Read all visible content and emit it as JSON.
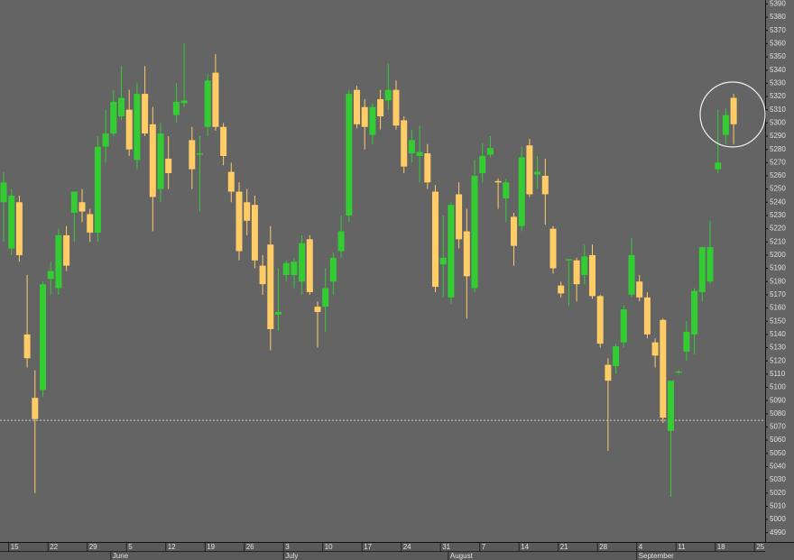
{
  "chart_data": {
    "type": "candlestick",
    "up_color": "#33cc33",
    "down_color": "#ffcc66",
    "ylim": [
      4983,
      5393
    ],
    "yticks": [
      4990,
      5000,
      5010,
      5020,
      5030,
      5040,
      5050,
      5060,
      5070,
      5080,
      5090,
      5100,
      5110,
      5120,
      5130,
      5140,
      5150,
      5160,
      5170,
      5180,
      5190,
      5200,
      5210,
      5220,
      5230,
      5240,
      5250,
      5260,
      5270,
      5280,
      5290,
      5300,
      5310,
      5320,
      5330,
      5340,
      5350,
      5360,
      5370,
      5380,
      5390
    ],
    "hline": 5075,
    "categories": [
      null,
      "15",
      null,
      null,
      null,
      null,
      "22",
      null,
      null,
      null,
      null,
      "29",
      null,
      null,
      null,
      null,
      "5",
      null,
      null,
      null,
      null,
      "12",
      null,
      null,
      null,
      null,
      "19",
      null,
      null,
      null,
      null,
      "26",
      null,
      null,
      null,
      null,
      "3",
      null,
      null,
      null,
      null,
      "10",
      null,
      null,
      null,
      null,
      "17",
      null,
      null,
      null,
      null,
      "24",
      null,
      null,
      null,
      null,
      "31",
      null,
      null,
      null,
      null,
      "7",
      null,
      null,
      null,
      null,
      "14",
      null,
      null,
      null,
      null,
      "21",
      null,
      null,
      null,
      null,
      "28",
      null,
      null,
      null,
      null,
      "4",
      null,
      null,
      null,
      null,
      "11",
      null,
      null,
      null,
      null,
      "18",
      null,
      null,
      null,
      null,
      "25"
    ],
    "month_labels": [
      null,
      null,
      null,
      null,
      null,
      null,
      null,
      null,
      null,
      null,
      null,
      null,
      null,
      null,
      "June",
      null,
      null,
      null,
      null,
      null,
      null,
      null,
      null,
      null,
      null,
      null,
      null,
      null,
      null,
      null,
      null,
      null,
      null,
      null,
      null,
      null,
      "July",
      null,
      null,
      null,
      null,
      null,
      null,
      null,
      null,
      null,
      null,
      null,
      null,
      null,
      null,
      null,
      null,
      null,
      null,
      null,
      null,
      "August",
      null,
      null,
      null,
      null,
      null,
      null,
      null,
      null,
      null,
      null,
      null,
      null,
      null,
      null,
      null,
      null,
      null,
      null,
      null,
      null,
      null,
      null,
      null,
      "September",
      null,
      null,
      null,
      null,
      null,
      null,
      null,
      null,
      null,
      null,
      null,
      null,
      null,
      null,
      null
    ],
    "open": [
      5240,
      5205,
      5240,
      5140,
      5092,
      5098,
      5182,
      5175,
      5215,
      5232,
      5240,
      5231,
      5217,
      5282,
      5292,
      5305,
      5310,
      5272,
      5322,
      5299,
      5250,
      5273,
      5306,
      5315,
      5287,
      5276,
      5297,
      5338,
      5297,
      5263,
      5248,
      5240,
      5238,
      5192,
      5208,
      5155,
      5185,
      5185,
      5180,
      5212,
      5161,
      5161,
      5180,
      5203,
      5230,
      5325,
      5312,
      5291,
      5318,
      5317,
      5325,
      5302,
      5277,
      5275,
      5277,
      5248,
      5193,
      5168,
      5246,
      5218,
      5175,
      5262,
      5276,
      5256,
      5243,
      5229,
      5222,
      5283,
      5261,
      5260,
      5220,
      5177,
      5196,
      5196,
      5185,
      5200,
      5169,
      5117,
      5116,
      5134,
      5170,
      5180,
      5168,
      5134,
      5151,
      5067,
      5111,
      5127,
      5140,
      5172,
      5180,
      5265,
      5291,
      5319,
      null,
      null,
      null
    ],
    "high": [
      5263,
      5250,
      5245,
      5185,
      5113,
      5180,
      5195,
      5220,
      5222,
      5248,
      5250,
      5235,
      5290,
      5310,
      5325,
      5343,
      5325,
      5330,
      5343,
      5312,
      5300,
      5290,
      5330,
      5360,
      5297,
      5290,
      5337,
      5352,
      5300,
      5270,
      5255,
      5250,
      5245,
      5200,
      5222,
      5190,
      5196,
      5198,
      5215,
      5215,
      5165,
      5190,
      5202,
      5230,
      5325,
      5328,
      5318,
      5315,
      5325,
      5345,
      5332,
      5305,
      5295,
      5298,
      5284,
      5253,
      5230,
      5240,
      5255,
      5235,
      5272,
      5285,
      5290,
      5258,
      5258,
      5232,
      5282,
      5288,
      5275,
      5273,
      5222,
      5180,
      5197,
      5198,
      5208,
      5208,
      5170,
      5122,
      5133,
      5162,
      5213,
      5185,
      5172,
      5137,
      5152,
      5105,
      5113,
      5150,
      5175,
      5206,
      5226,
      5310,
      5311,
      5322,
      null,
      null,
      null
    ],
    "low": [
      5210,
      5200,
      5195,
      5115,
      5020,
      5093,
      5170,
      5170,
      5188,
      5210,
      5225,
      5210,
      5210,
      5270,
      5290,
      5302,
      5275,
      5265,
      5290,
      5218,
      5240,
      5250,
      5300,
      5312,
      5250,
      5233,
      5290,
      5294,
      5268,
      5240,
      5196,
      5215,
      5190,
      5170,
      5128,
      5143,
      5180,
      5175,
      5170,
      5170,
      5130,
      5142,
      5170,
      5198,
      5225,
      5296,
      5280,
      5284,
      5295,
      5310,
      5295,
      5262,
      5270,
      5255,
      5250,
      5172,
      5168,
      5163,
      5205,
      5152,
      5172,
      5255,
      5274,
      5235,
      5225,
      5192,
      5218,
      5244,
      5250,
      5223,
      5186,
      5168,
      5162,
      5165,
      5178,
      5167,
      5130,
      5052,
      5110,
      5130,
      5168,
      5165,
      5137,
      5115,
      5073,
      5017,
      5110,
      5120,
      5125,
      5165,
      5178,
      5262,
      5284,
      5284,
      null,
      null,
      null
    ],
    "close": [
      5255,
      5245,
      5200,
      5122,
      5076,
      5178,
      5188,
      5215,
      5192,
      5248,
      5233,
      5217,
      5282,
      5292,
      5316,
      5319,
      5280,
      5322,
      5292,
      5244,
      5292,
      5262,
      5316,
      5317,
      5265,
      5277,
      5332,
      5297,
      5275,
      5248,
      5203,
      5226,
      5196,
      5178,
      5144,
      5157,
      5194,
      5195,
      5209,
      5172,
      5157,
      5175,
      5198,
      5218,
      5322,
      5299,
      5297,
      5312,
      5305,
      5325,
      5298,
      5267,
      5287,
      5278,
      5255,
      5176,
      5198,
      5238,
      5212,
      5184,
      5260,
      5275,
      5281,
      5255,
      5255,
      5207,
      5274,
      5246,
      5263,
      5246,
      5190,
      5171,
      5197,
      5178,
      5199,
      5169,
      5133,
      5105,
      5131,
      5159,
      5200,
      5168,
      5140,
      5124,
      5077,
      5105,
      5112,
      5142,
      5173,
      5206,
      5206,
      5270,
      5306,
      5299,
      null,
      null,
      null
    ]
  }
}
